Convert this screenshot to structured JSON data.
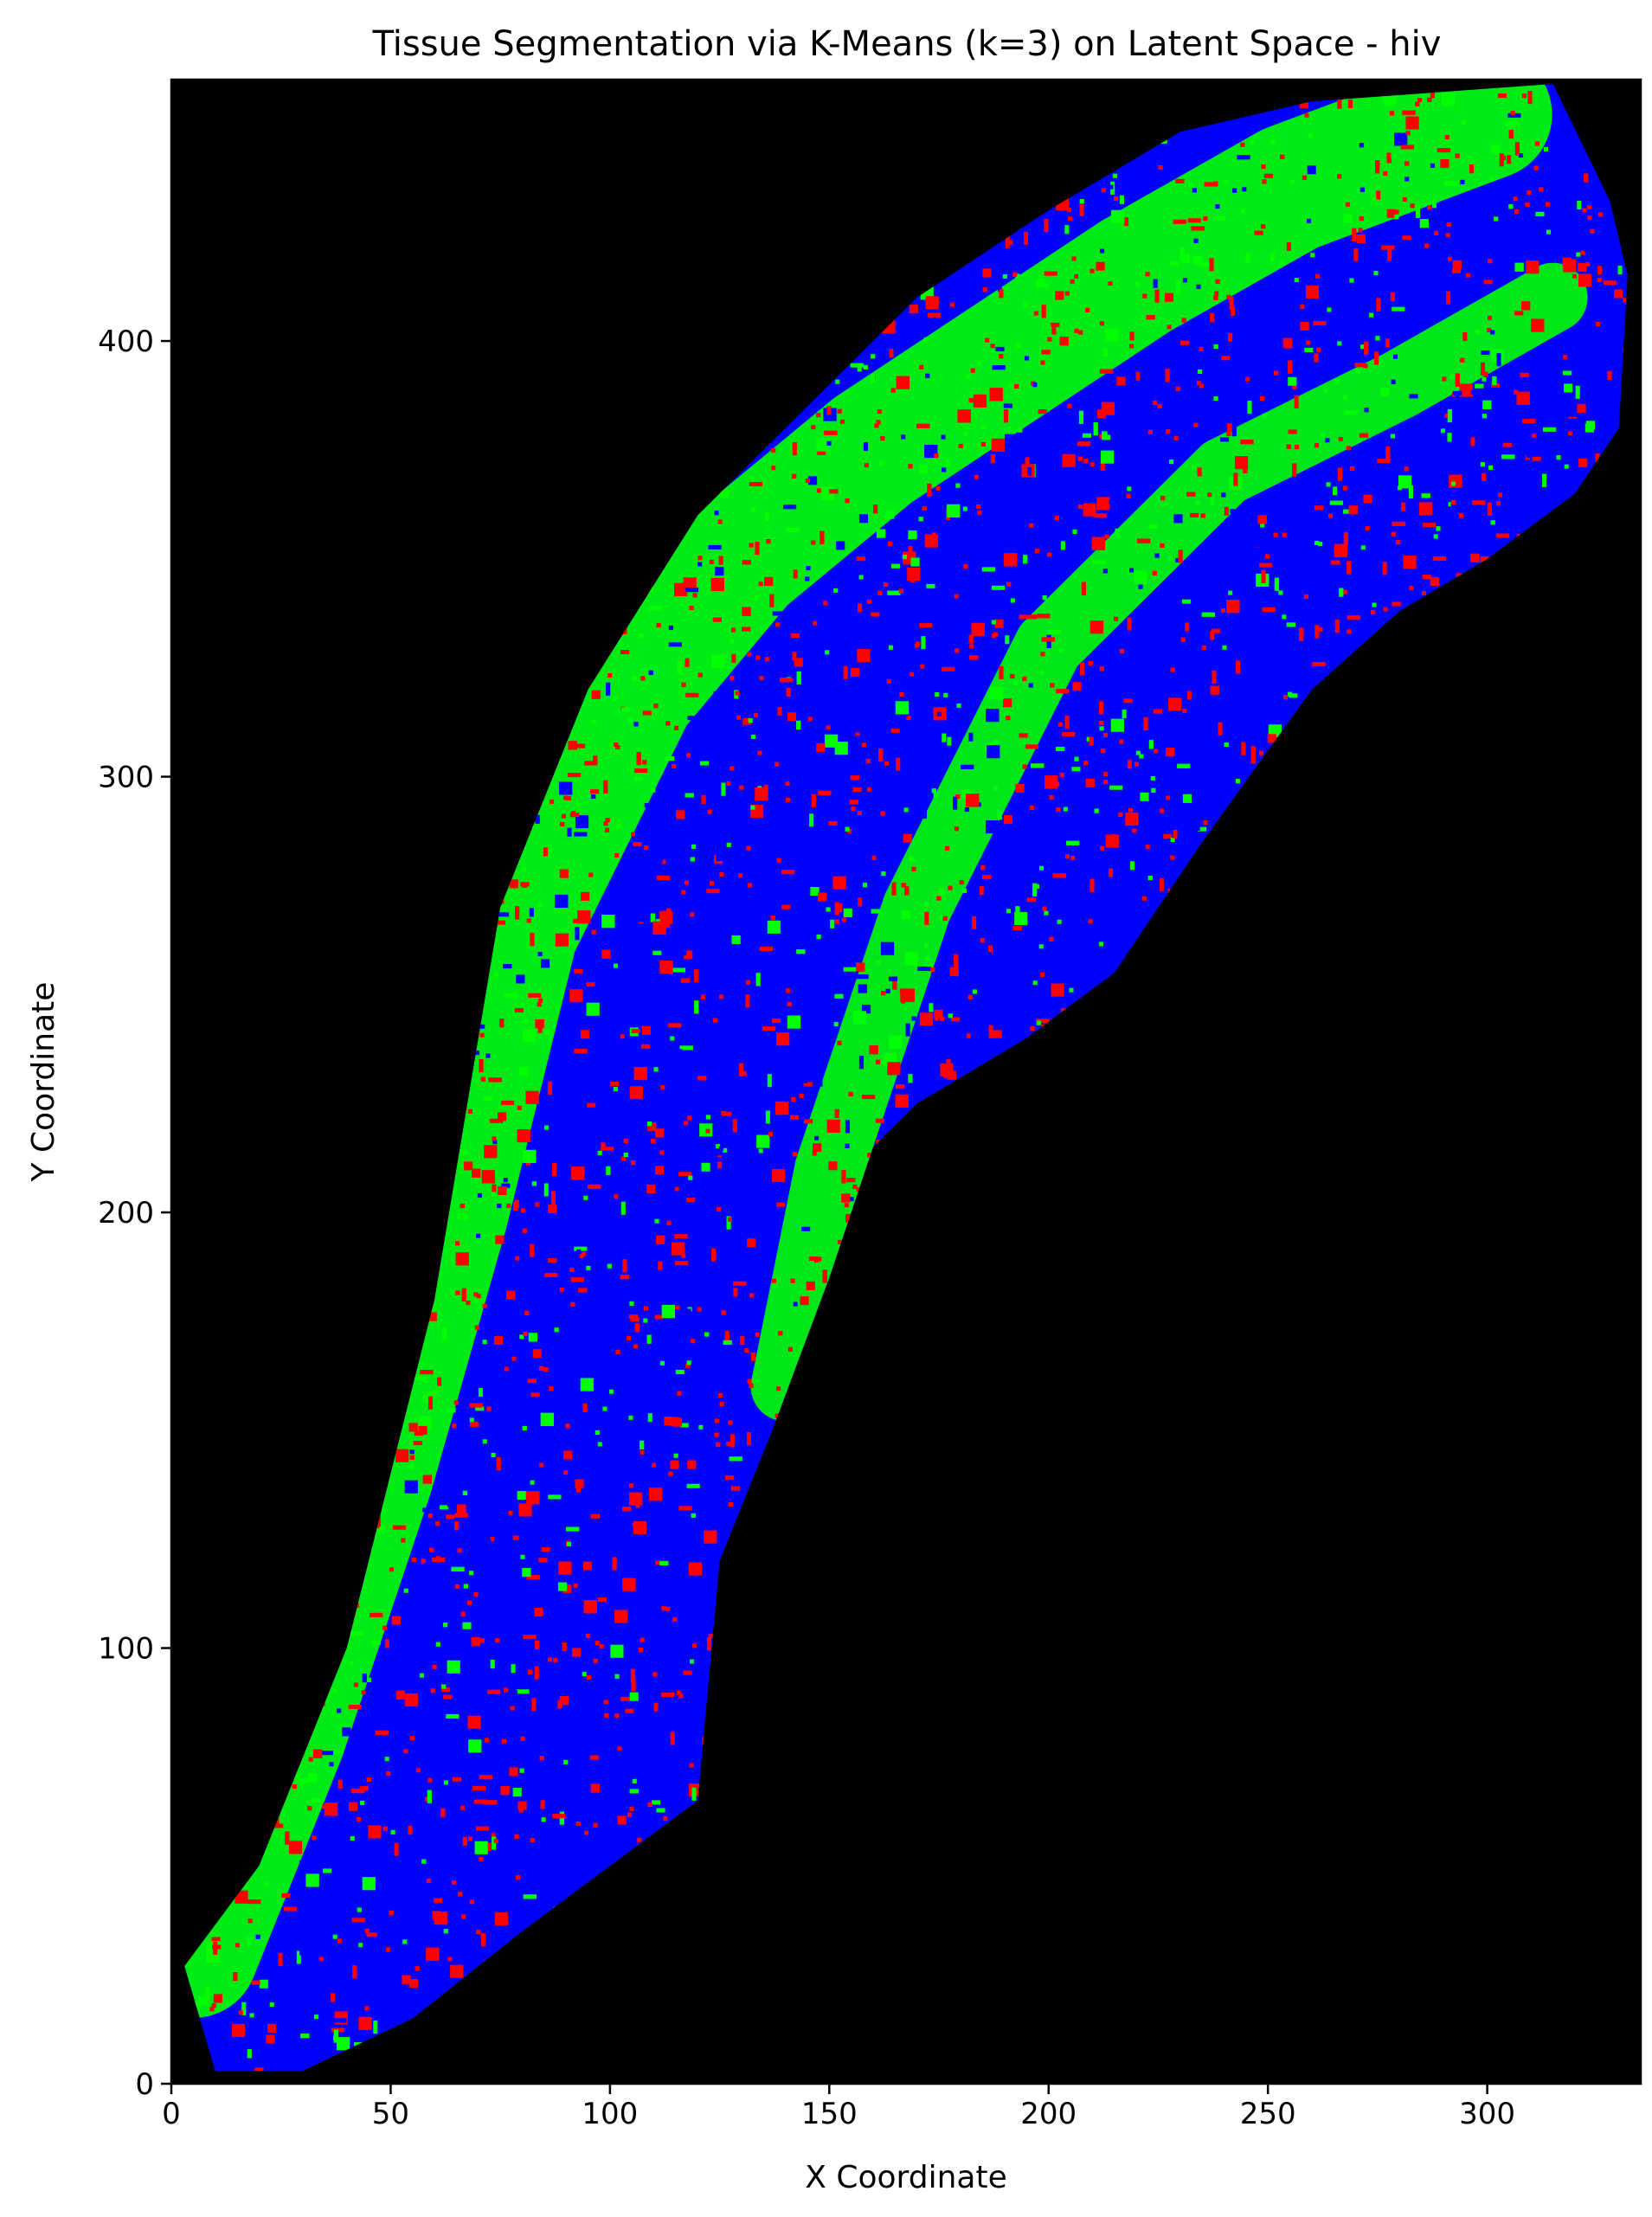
{
  "chart_data": {
    "type": "heatmap",
    "title": "Tissue Segmentation via K-Means (k=3) on Latent Space - hiv",
    "xlabel": "X Coordinate",
    "ylabel": "Y Coordinate",
    "xlim": [
      0,
      335
    ],
    "ylim": [
      0,
      460
    ],
    "xticks": [
      0,
      50,
      100,
      150,
      200,
      250,
      300
    ],
    "yticks": [
      0,
      100,
      200,
      300,
      400
    ],
    "grid": false,
    "background_color": "#000000",
    "cluster_colors": [
      "#0000ff",
      "#00ff00",
      "#ff0000"
    ],
    "tissue_outline": [
      [
        3,
        27
      ],
      [
        20,
        50
      ],
      [
        40,
        100
      ],
      [
        60,
        180
      ],
      [
        75,
        270
      ],
      [
        95,
        320
      ],
      [
        120,
        360
      ],
      [
        145,
        385
      ],
      [
        170,
        410
      ],
      [
        200,
        430
      ],
      [
        230,
        448
      ],
      [
        260,
        455
      ],
      [
        315,
        459
      ],
      [
        328,
        432
      ],
      [
        332,
        415
      ],
      [
        330,
        380
      ],
      [
        320,
        365
      ],
      [
        300,
        350
      ],
      [
        280,
        338
      ],
      [
        260,
        320
      ],
      [
        235,
        285
      ],
      [
        215,
        255
      ],
      [
        195,
        240
      ],
      [
        170,
        225
      ],
      [
        160,
        215
      ],
      [
        150,
        185
      ],
      [
        137,
        150
      ],
      [
        125,
        120
      ],
      [
        120,
        65
      ],
      [
        100,
        50
      ],
      [
        80,
        35
      ],
      [
        55,
        15
      ],
      [
        30,
        3
      ],
      [
        10,
        3
      ]
    ],
    "band_outer_green": [
      [
        5,
        30
      ],
      [
        25,
        80
      ],
      [
        45,
        140
      ],
      [
        62,
        200
      ],
      [
        78,
        265
      ],
      [
        105,
        320
      ],
      [
        130,
        350
      ],
      [
        160,
        375
      ],
      [
        190,
        395
      ],
      [
        220,
        415
      ],
      [
        255,
        435
      ],
      [
        300,
        452
      ]
    ],
    "band_inner_green": [
      [
        140,
        160
      ],
      [
        150,
        210
      ],
      [
        170,
        270
      ],
      [
        200,
        330
      ],
      [
        240,
        370
      ],
      [
        280,
        390
      ],
      [
        315,
        410
      ]
    ]
  }
}
